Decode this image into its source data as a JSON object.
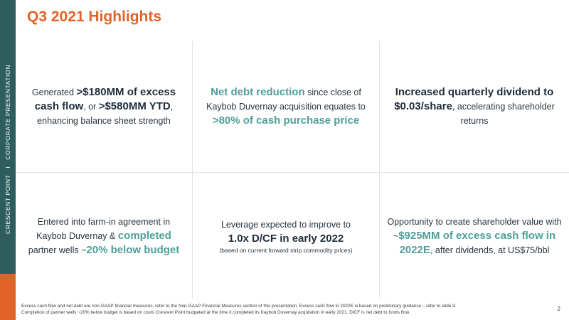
{
  "sidebar": {
    "company": "CRESCENT POINT",
    "separator": "I",
    "section": "CORPORATE PRESENTATION",
    "colors": {
      "bar": "#2d5d5c",
      "accent": "#e0642a"
    }
  },
  "title": "Q3 2021 Highlights",
  "colors": {
    "title": "#e0642a",
    "highlight": "#4e9f9a",
    "text": "#2a3540"
  },
  "cells": {
    "c1": {
      "t1": "Generated ",
      "t2": ">$180MM of excess cash flow",
      "t3": ", or ",
      "t4": ">$580MM YTD",
      "t5": ", enhancing balance sheet strength"
    },
    "c2": {
      "t1": "Net debt reduction",
      "t2": " since close of Kaybob Duvernay acquisition equates to ",
      "t3": ">80% of cash purchase price"
    },
    "c3": {
      "t1": "Increased quarterly dividend to $0.03/share",
      "t2": ", accelerating shareholder returns"
    },
    "c4": {
      "t1": "Entered into farm-in agreement in Kaybob Duvernay & ",
      "t2": "completed",
      "t3": " partner wells ~",
      "t4": "20% below budget"
    },
    "c5": {
      "t1": "Leverage expected to improve to ",
      "t2": "1.0x D/CF in early 2022",
      "t3": "(based on current forward strip commodity prices)"
    },
    "c6": {
      "t1": "Opportunity to create shareholder value with ~",
      "t2": "$925MM of excess cash flow in 2022E",
      "t3": ", after dividends, at US$75/bbl"
    }
  },
  "footnote": {
    "line1": "Excess cash flow and net debt are non-GAAP financial measures, refer to the Non-GAAP Financial Measures section of this presentation. Excess cash flow in 2022E is based on preliminary guidance – refer to slide 9.",
    "line2": "Completion of partner wells ~20% below budget is based on costs Crescent Point budgeted at the time it completed its Kaybob Duvernay acquisition in early 2021. D/CF is net debt to funds flow."
  },
  "page_number": "2"
}
